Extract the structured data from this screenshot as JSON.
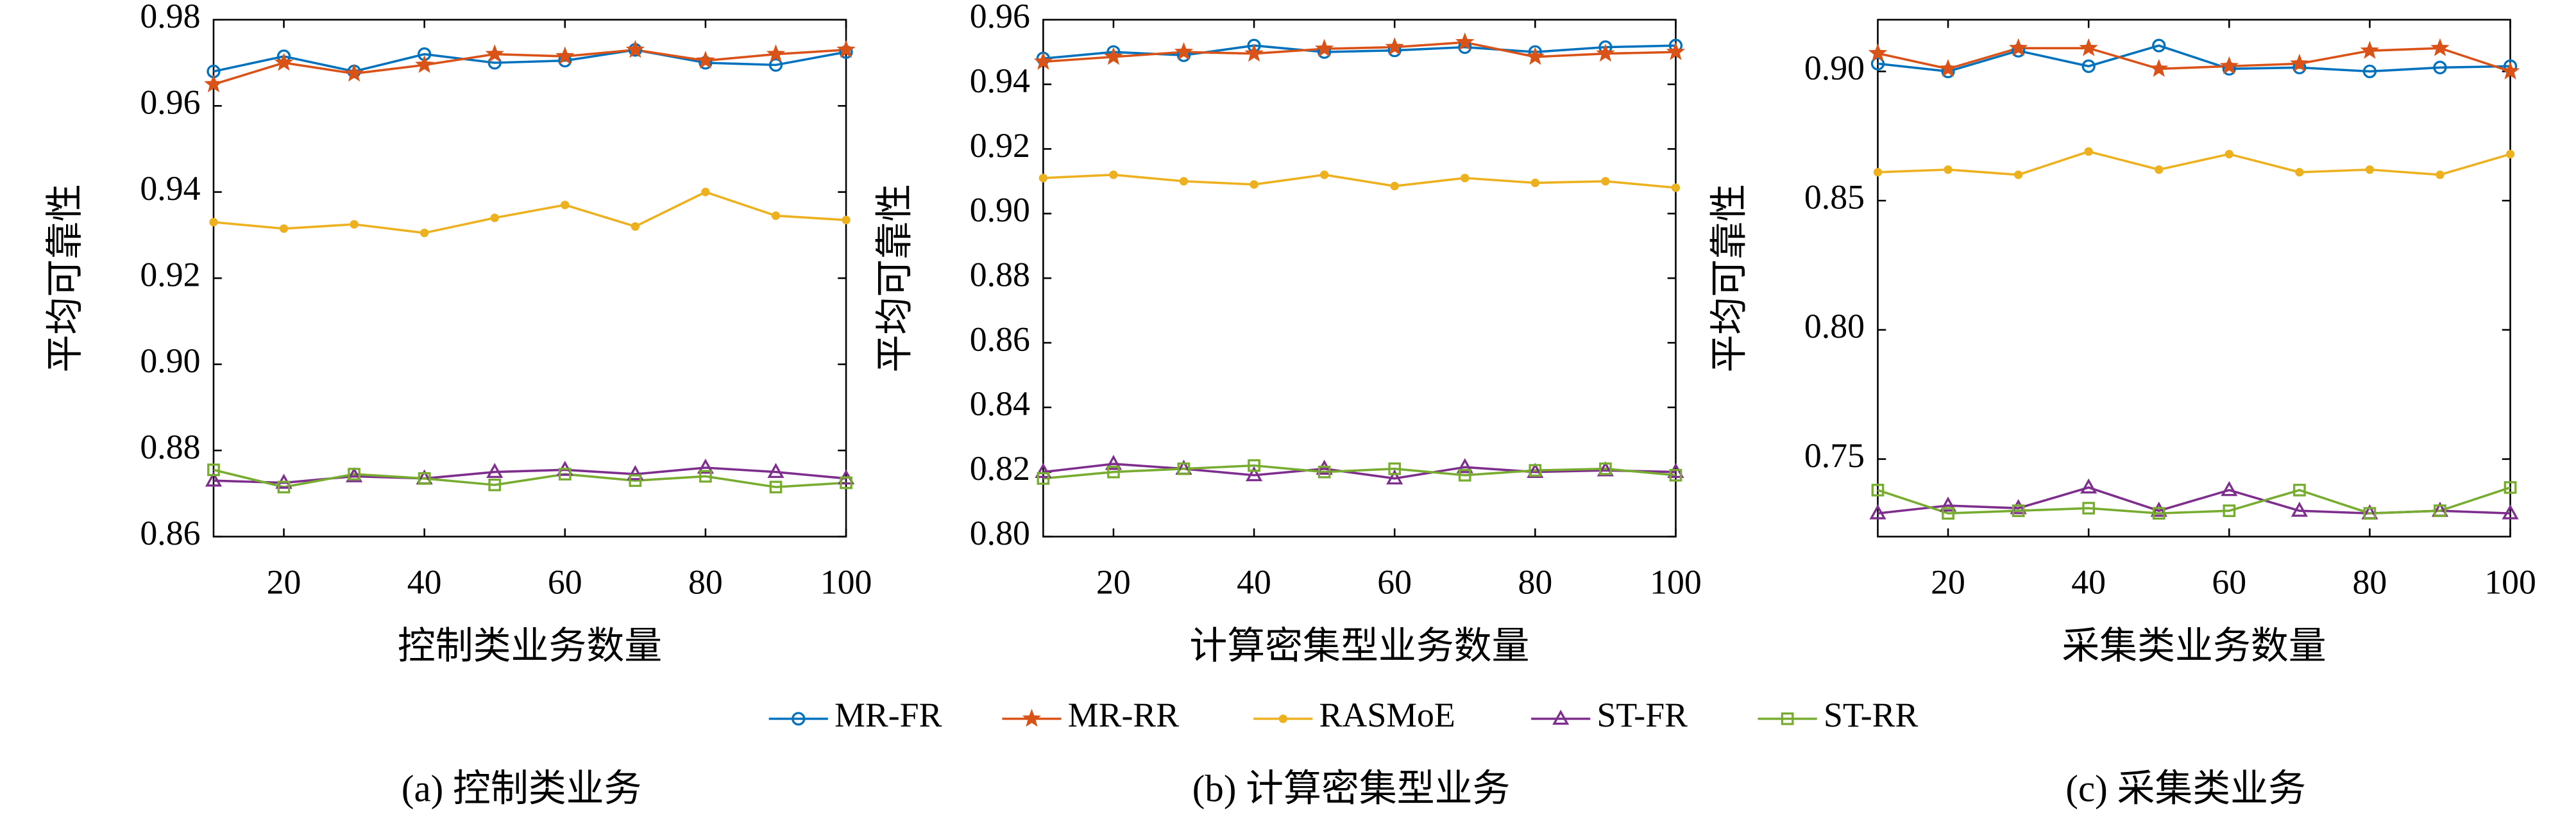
{
  "chart_data": [
    {
      "type": "line",
      "caption": "(a) 控制类业务",
      "xlabel": "控制类业务数量",
      "ylabel": "平均可靠性",
      "x": [
        10,
        20,
        30,
        40,
        50,
        60,
        70,
        80,
        90,
        100
      ],
      "xlim": [
        10,
        100
      ],
      "xticks": [
        20,
        40,
        60,
        80,
        100
      ],
      "ylim": [
        0.86,
        0.98
      ],
      "yticks": [
        0.86,
        0.88,
        {
          "value": 0.9,
          "label": "0.90"
        },
        0.92,
        0.94,
        0.96,
        0.98
      ],
      "series": [
        {
          "name": "MR-FR",
          "color": "#0072bd",
          "marker": "circle",
          "values": [
            0.968,
            0.9715,
            0.968,
            0.972,
            0.97,
            0.9705,
            0.973,
            0.97,
            0.9695,
            0.9725
          ]
        },
        {
          "name": "MR-RR",
          "color": "#d95319",
          "marker": "star",
          "values": [
            0.965,
            0.97,
            0.9675,
            0.9695,
            0.972,
            0.9715,
            0.973,
            0.9705,
            0.972,
            0.973
          ]
        },
        {
          "name": "RASMoE",
          "color": "#edb120",
          "marker": "dot",
          "values": [
            0.933,
            0.9315,
            0.9325,
            0.9305,
            0.934,
            0.937,
            0.932,
            0.94,
            0.9345,
            0.9335
          ]
        },
        {
          "name": "ST-FR",
          "color": "#7e2f8e",
          "marker": "triangle",
          "values": [
            0.873,
            0.8725,
            0.874,
            0.8735,
            0.875,
            0.8755,
            0.8745,
            0.876,
            0.875,
            0.8735
          ]
        },
        {
          "name": "ST-RR",
          "color": "#77ac30",
          "marker": "square",
          "values": [
            0.8755,
            0.8715,
            0.8745,
            0.8735,
            0.872,
            0.8745,
            0.873,
            0.874,
            0.8715,
            0.8725
          ]
        }
      ]
    },
    {
      "type": "line",
      "caption": "(b) 计算密集型业务",
      "xlabel": "计算密集型业务数量",
      "ylabel": "平均可靠性",
      "x": [
        10,
        20,
        30,
        40,
        50,
        60,
        70,
        80,
        90,
        100
      ],
      "xlim": [
        10,
        100
      ],
      "xticks": [
        20,
        40,
        60,
        80,
        100
      ],
      "ylim": [
        0.8,
        0.96
      ],
      "yticks": [
        {
          "value": 0.8,
          "label": "0.80"
        },
        0.82,
        0.84,
        0.86,
        0.88,
        {
          "value": 0.9,
          "label": "0.90"
        },
        0.92,
        0.94,
        0.96
      ],
      "series": [
        {
          "name": "MR-FR",
          "color": "#0072bd",
          "marker": "circle",
          "values": [
            0.948,
            0.95,
            0.949,
            0.952,
            0.95,
            0.9505,
            0.9515,
            0.95,
            0.9515,
            0.952
          ]
        },
        {
          "name": "MR-RR",
          "color": "#d95319",
          "marker": "star",
          "values": [
            0.947,
            0.9485,
            0.95,
            0.9495,
            0.951,
            0.9515,
            0.953,
            0.9485,
            0.9495,
            0.95
          ]
        },
        {
          "name": "RASMoE",
          "color": "#edb120",
          "marker": "dot",
          "values": [
            0.911,
            0.912,
            0.91,
            0.909,
            0.912,
            0.9085,
            0.911,
            0.9095,
            0.91,
            0.908
          ]
        },
        {
          "name": "ST-FR",
          "color": "#7e2f8e",
          "marker": "triangle",
          "values": [
            0.82,
            0.8225,
            0.821,
            0.819,
            0.821,
            0.818,
            0.8215,
            0.82,
            0.8205,
            0.82
          ]
        },
        {
          "name": "ST-RR",
          "color": "#77ac30",
          "marker": "square",
          "values": [
            0.818,
            0.82,
            0.821,
            0.822,
            0.82,
            0.821,
            0.819,
            0.8205,
            0.821,
            0.819
          ]
        }
      ]
    },
    {
      "type": "line",
      "caption": "(c) 采集类业务",
      "xlabel": "采集类业务数量",
      "ylabel": "平均可靠性",
      "x": [
        10,
        20,
        30,
        40,
        50,
        60,
        70,
        80,
        90,
        100
      ],
      "xlim": [
        10,
        100
      ],
      "xticks": [
        20,
        40,
        60,
        80,
        100
      ],
      "ylim": [
        0.72,
        0.92
      ],
      "yticks": [
        0.75,
        {
          "value": 0.8,
          "label": "0.80"
        },
        0.85,
        {
          "value": 0.9,
          "label": "0.90"
        }
      ],
      "series": [
        {
          "name": "MR-FR",
          "color": "#0072bd",
          "marker": "circle",
          "values": [
            0.903,
            0.9,
            0.908,
            0.902,
            0.91,
            0.901,
            0.9015,
            0.9,
            0.9015,
            0.902
          ]
        },
        {
          "name": "MR-RR",
          "color": "#d95319",
          "marker": "star",
          "values": [
            0.907,
            0.901,
            0.909,
            0.909,
            0.901,
            0.902,
            0.903,
            0.908,
            0.909,
            0.9
          ]
        },
        {
          "name": "RASMoE",
          "color": "#edb120",
          "marker": "dot",
          "values": [
            0.861,
            0.862,
            0.86,
            0.869,
            0.862,
            0.868,
            0.861,
            0.862,
            0.86,
            0.868
          ]
        },
        {
          "name": "ST-FR",
          "color": "#7e2f8e",
          "marker": "triangle",
          "values": [
            0.729,
            0.732,
            0.731,
            0.739,
            0.73,
            0.738,
            0.73,
            0.729,
            0.73,
            0.729
          ]
        },
        {
          "name": "ST-RR",
          "color": "#77ac30",
          "marker": "square",
          "values": [
            0.738,
            0.729,
            0.73,
            0.731,
            0.729,
            0.73,
            0.738,
            0.729,
            0.73,
            0.739
          ]
        }
      ]
    }
  ]
}
